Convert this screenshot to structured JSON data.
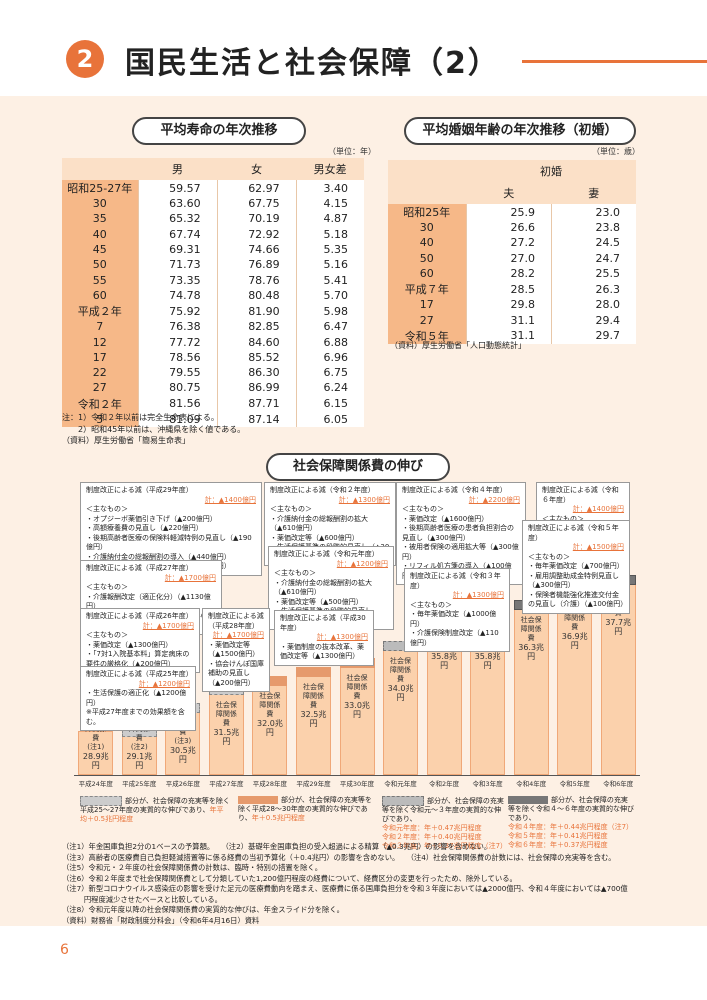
{
  "header": {
    "number": "2",
    "title": "国民生活と社会保障（2）"
  },
  "life": {
    "title": "平均寿命の年次推移",
    "unit": "（単位：年）",
    "cols": [
      "男",
      "女",
      "男女差"
    ],
    "rows": [
      [
        "昭和25-27年",
        "59.57",
        "62.97",
        "3.40"
      ],
      [
        "30",
        "63.60",
        "67.75",
        "4.15"
      ],
      [
        "35",
        "65.32",
        "70.19",
        "4.87"
      ],
      [
        "40",
        "67.74",
        "72.92",
        "5.18"
      ],
      [
        "45",
        "69.31",
        "74.66",
        "5.35"
      ],
      [
        "50",
        "71.73",
        "76.89",
        "5.16"
      ],
      [
        "55",
        "73.35",
        "78.76",
        "5.41"
      ],
      [
        "60",
        "74.78",
        "80.48",
        "5.70"
      ],
      [
        "平成２年",
        "75.92",
        "81.90",
        "5.98"
      ],
      [
        "7",
        "76.38",
        "82.85",
        "6.47"
      ],
      [
        "12",
        "77.72",
        "84.60",
        "6.88"
      ],
      [
        "17",
        "78.56",
        "85.52",
        "6.96"
      ],
      [
        "22",
        "79.55",
        "86.30",
        "6.75"
      ],
      [
        "27",
        "80.75",
        "86.99",
        "6.24"
      ],
      [
        "令和２年",
        "81.56",
        "87.71",
        "6.15"
      ],
      [
        "5",
        "81.09",
        "87.14",
        "6.05"
      ]
    ],
    "notes": [
      "注：1）令和２年以前は完全生命表による。",
      "　　2）昭和45年以前は、沖縄県を除く値である。",
      "（資料）厚生労働省「簡易生命表」"
    ]
  },
  "marriage": {
    "title": "平均婚姻年齢の年次推移（初婚）",
    "unit": "（単位：歳）",
    "group": "初婚",
    "cols": [
      "夫",
      "妻"
    ],
    "rows": [
      [
        "昭和25年",
        "25.9",
        "23.0"
      ],
      [
        "30",
        "26.6",
        "23.8"
      ],
      [
        "40",
        "27.2",
        "24.5"
      ],
      [
        "50",
        "27.0",
        "24.7"
      ],
      [
        "60",
        "28.2",
        "25.5"
      ],
      [
        "平成７年",
        "28.5",
        "26.3"
      ],
      [
        "17",
        "29.8",
        "28.0"
      ],
      [
        "27",
        "31.1",
        "29.4"
      ],
      [
        "令和５年",
        "31.1",
        "29.7"
      ]
    ],
    "source": "（資料）厚生労働省「人口動態統計」"
  },
  "social": {
    "title": "社会保障関係費の伸び",
    "bar_label": "社会保障関係費",
    "bars": [
      {
        "year": "平成24年度",
        "amount": "28.9兆円",
        "note": "(注1)",
        "value": 28.9
      },
      {
        "year": "平成25年度",
        "amount": "29.1兆円",
        "note": "(注2)",
        "value": 29.1
      },
      {
        "year": "平成26年度",
        "amount": "30.5兆円",
        "note": "(注3)",
        "value": 30.5
      },
      {
        "year": "平成27年度",
        "amount": "31.5兆円",
        "note": "",
        "value": 31.5
      },
      {
        "year": "平成28年度",
        "amount": "32.0兆円",
        "note": "",
        "value": 32.0
      },
      {
        "year": "平成29年度",
        "amount": "32.5兆円",
        "note": "",
        "value": 32.5
      },
      {
        "year": "平成30年度",
        "amount": "33.0兆円",
        "note": "",
        "value": 33.0
      },
      {
        "year": "令和元年度",
        "amount": "34.0兆円",
        "note": "",
        "value": 34.0
      },
      {
        "year": "令和2年度",
        "amount": "35.8兆円",
        "note": "",
        "value": 35.8
      },
      {
        "year": "令和3年度",
        "amount": "35.8兆円",
        "note": "(注6)",
        "value": 35.8
      },
      {
        "year": "令和4年度",
        "amount": "36.3兆円",
        "note": "",
        "value": 36.3
      },
      {
        "year": "令和5年度",
        "amount": "36.9兆円",
        "note": "",
        "value": 36.9
      },
      {
        "year": "令和6年度",
        "amount": "37.7兆円",
        "note": "",
        "value": 37.7
      }
    ],
    "boxes": [
      {
        "title": "制度改正による減（平成29年度）",
        "total": "▲1400億円",
        "lines": [
          "＜主なもの＞",
          "・オプジーボ薬価引き下げ（▲200億円）",
          "・高額療養費の見直し（▲220億円）",
          "・後期高齢者医療の保険料軽減特例の見直し（▲190億円）",
          "・介護納付金の総報酬割の導入（▲440億円）",
          "・協会けんぽ国庫補助の見直し（▲320億円）"
        ]
      },
      {
        "title": "制度改正による減（令和２年度）",
        "total": "▲1300億円",
        "lines": [
          "＜主なもの＞",
          "・介護納付金の総報酬割の拡大（▲610億円）",
          "・薬価改定等（▲600億円）",
          "・生活保護基準の段階的見直し（▲30億円）"
        ]
      },
      {
        "title": "制度改正による減（令和４年度）",
        "total": "▲2200億円",
        "lines": [
          "＜主なもの＞",
          "・薬価改定（▲1600億円）",
          "・後期高齢者医療の患者負担割合の見直し（▲300億円）",
          "・被用者保険の適用拡大等（▲300億円）",
          "・リフィル処方箋の導入（▲100億円）"
        ]
      },
      {
        "title": "制度改正による減（令和６年度）",
        "total": "▲1400億円",
        "lines": [
          "＜主なもの＞",
          "・薬価改定等（▲1300億円）"
        ]
      },
      {
        "title": "制度改正による減（平成27年度）",
        "total": "▲1700億円",
        "lines": [
          "＜主なもの＞",
          "・介護報酬改定（適正化分）（▲1130億円）",
          "・協会けんぽ国庫補助の見直し（▲460億円）"
        ]
      },
      {
        "title": "制度改正による減（令和元年度）",
        "total": "▲1200億円",
        "lines": [
          "＜主なもの＞",
          "・介護納付金の総報酬割の拡大（▲610億円）",
          "・薬価改定等（▲500億円）",
          "・生活保護基準の段階的見直し（▲30億円）"
        ]
      },
      {
        "title": "制度改正による減（令和５年度）",
        "total": "▲1500億円",
        "lines": [
          "＜主なもの＞",
          "・毎年薬価改定（▲700億円）",
          "・雇用調整助成金特例見直し（▲300億円）",
          "・保険者機能強化推進交付金の見直し（介護）（▲100億円）"
        ]
      },
      {
        "title": "制度改正による減（令和３年度）",
        "total": "▲1300億円",
        "lines": [
          "＜主なもの＞",
          "・毎年薬価改定（▲1000億円）",
          "・介護保険制度改定（▲110億円）"
        ]
      },
      {
        "title": "制度改正による減（平成26年度）",
        "total": "▲1700億円",
        "lines": [
          "＜主なもの＞",
          "・薬価改定（▲1300億円）",
          "・「7対1入院基本料」算定病床の要件の厳格化（▲200億円）"
        ]
      },
      {
        "title": "制度改正による減（平成28年度）",
        "total": "▲1700億円",
        "lines": [
          "・薬価改定等（▲1500億円）",
          "・協会けんぽ国庫補助の見直し（▲200億円）"
        ]
      },
      {
        "title": "制度改正による減（平成30年度）",
        "total": "▲1300億円",
        "lines": [
          "・薬価制度の抜本改革、薬価改定等（▲1300億円）"
        ]
      },
      {
        "title": "制度改正による減（平成25年度）",
        "total": "▲1200億円",
        "lines": [
          "・生活保護の適正化（▲1200億円）",
          "※平成27年度までの効果額を含む。"
        ]
      }
    ],
    "legend": [
      {
        "text": "部分が、社会保障の充実等を除く平成25～27年度の実質的な伸びであり、",
        "highlight": "年平均＋0.5兆円程度"
      },
      {
        "text": "部分が、社会保障の充実等を除く平成28～30年度の実質的な伸びであり、",
        "highlight": "年＋0.5兆円程度"
      },
      {
        "text": "部分が、社会保障の充実等を除く令和元～３年度の実質的な伸びであり、",
        "lines": [
          "令和元年度：年＋0.47兆円程度",
          "令和２年度：年＋0.40兆円程度",
          "令和３年度：年＋0.37兆円程度（注7）"
        ]
      },
      {
        "text": "部分が、社会保障の充実等を除く令和４～６年度の実質的な伸びであり、",
        "lines": [
          "令和４年度：年＋0.44兆円程度（注7）",
          "令和５年度：年＋0.41兆円程度",
          "令和６年度：年＋0.37兆円程度"
        ]
      }
    ],
    "notes": [
      "（注1）年金国庫負担2分の1ベースの予算額。　　（注2）基礎年金国庫負担の受入超過による精算（▲0.3兆円）の影響を含めない。",
      "（注3）高齢者の医療費自己負担軽減措置等に係る経費の当初予算化（＋0.4兆円）の影響を含めない。　　（注4）社会保障関係費の計数には、社会保障の充実等を含む。",
      "（注5）令和元・２年度の社会保障関係費の計数は、臨時・特別の措置を除く。",
      "（注6）令和２年度まで社会保障関係費として分類していた1,200億円程度の経費について、経費区分の変更を行ったため、除外している。",
      "（注7）新型コロナウイルス感染症の影響を受けた足元の医療費動向を踏まえ、医療費に係る国庫負担分を令和３年度においては▲2000億円、令和４年度においては▲700億",
      "　　　円程度減少させたベースと比較している。",
      "（注8）令和元年度以降の社会保障関係費の実質的な伸びは、年金スライド分を除く。",
      "（資料）財務省「財政制度分科会」（令和6年4月16日）資料"
    ]
  },
  "page_number": "6",
  "colors": {
    "accent": "#e8733a",
    "panel": "#fdf0e4",
    "bar": "#fbd1ac",
    "bar_dark": "#e69a6c",
    "bar_gray": "#777777"
  }
}
